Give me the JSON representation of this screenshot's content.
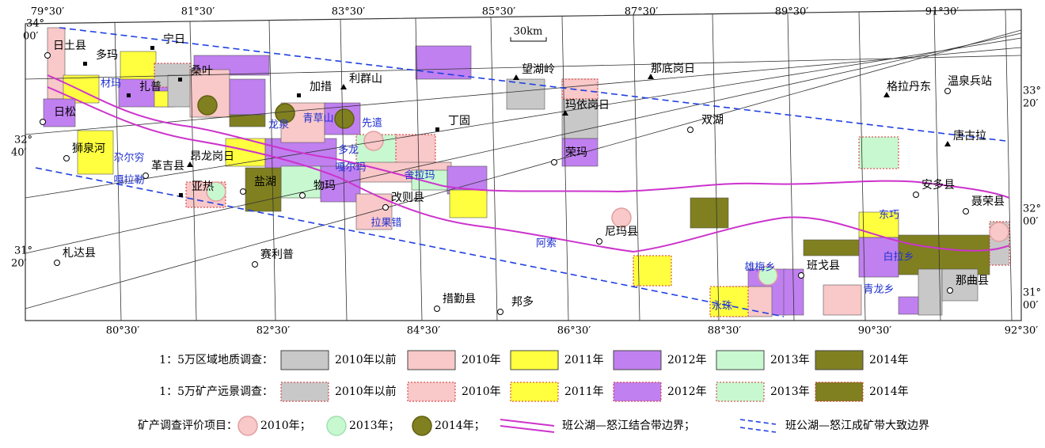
{
  "map": {
    "longitude_top": [
      "79°30′",
      "81°30′",
      "83°30′",
      "85°30′",
      "87°30′",
      "89°30′",
      "91°30′"
    ],
    "longitude_bottom": [
      "80°30′",
      "82°30′",
      "84°30′",
      "86°30′",
      "88°30′",
      "90°30′",
      "92°30′"
    ],
    "latitude_left": [
      {
        "deg": "34°",
        "min": "00′"
      },
      {
        "deg": "32°",
        "min": "40′"
      },
      {
        "deg": "31°",
        "min": "20′"
      }
    ],
    "latitude_right": [
      {
        "deg": "33°",
        "min": "20′"
      },
      {
        "deg": "32°",
        "min": "00′"
      },
      {
        "deg": "31°",
        "min": "00′"
      }
    ],
    "scale": "30km",
    "places": [
      "日土县",
      "多玛",
      "宁日",
      "桑叶",
      "利群山",
      "加措",
      "望湖岭",
      "那底岗日",
      "格拉丹东",
      "温泉兵站",
      "扎普",
      "日松",
      "玛依岗日",
      "丁固",
      "双湖",
      "唐古拉",
      "狮泉河",
      "革吉县",
      "昂龙岗日",
      "荣玛",
      "盐湖",
      "物玛",
      "改则县",
      "安多县",
      "聂荣县",
      "亚热",
      "尼玛县",
      "札达县",
      "赛利普",
      "班戈县",
      "那曲县",
      "措勤县",
      "邦多"
    ],
    "blue_places": [
      "材玛",
      "龙泉",
      "青草山",
      "先遣",
      "多龙",
      "尕尔穷",
      "嘎拉勒",
      "嘎尔玛",
      "舍拉玛",
      "拉果错",
      "阿索",
      "东巧",
      "白拉乡",
      "雄梅乡",
      "青龙乡",
      "永珠"
    ]
  },
  "legend": {
    "regional": {
      "label": "1：5万区域地质调查：",
      "items": [
        "2010年以前",
        "2010年",
        "2011年",
        "2012年",
        "2013年",
        "2014年"
      ]
    },
    "prospect": {
      "label": "1：5万矿产远景调查：",
      "items": [
        "2010年以前",
        "2010年",
        "2011年",
        "2012年",
        "2013年",
        "2014年"
      ]
    },
    "projects": {
      "label": "矿产调查评价项目：",
      "items": [
        "2010年；",
        "2013年；",
        "2014年；"
      ]
    },
    "suture": "班公湖—怒江结合带边界；",
    "belt": "班公湖—怒江成矿带大致边界"
  }
}
